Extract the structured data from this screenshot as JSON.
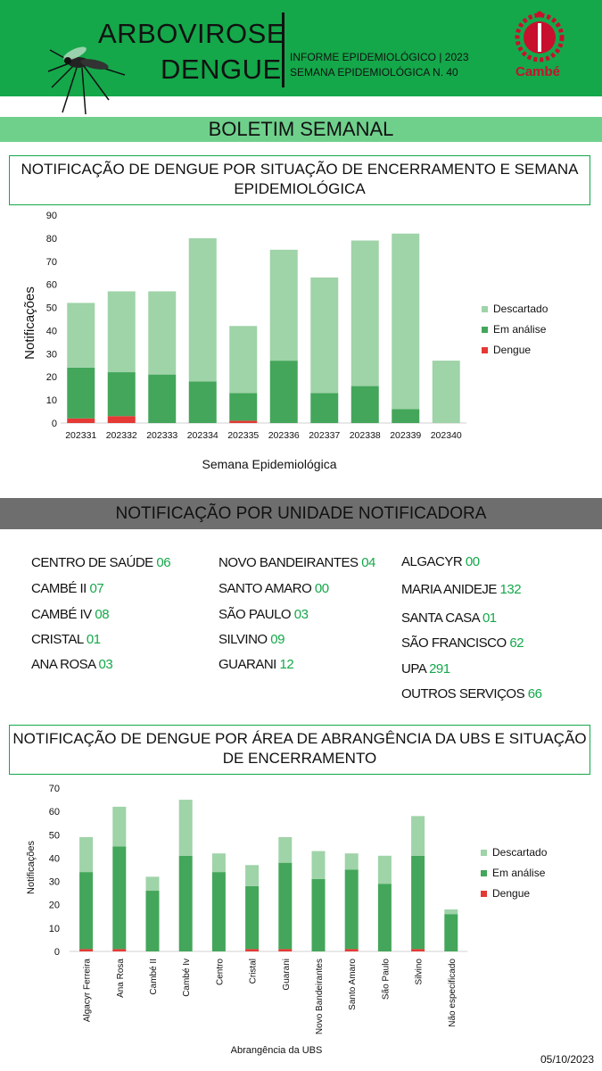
{
  "header": {
    "title_line1": "ARBOVIROSE",
    "title_line2": "DENGUE",
    "informe": "INFORME EPIDEMIOLÓGICO | 2023",
    "semana": "SEMANA EPIDEMIOLÓGICA  N. 40",
    "logo_text": "Cambé"
  },
  "boletim": "BOLETIM SEMANAL",
  "section1_title": "NOTIFICAÇÃO DE DENGUE POR SITUAÇÃO DE ENCERRAMENTO E SEMANA EPIDEMIOLÓGICA",
  "section2_title": "NOTIFICAÇÃO POR UNIDADE NOTIFICADORA",
  "section3_title": "NOTIFICAÇÃO DE DENGUE POR ÁREA DE ABRANGÊNCIA DA UBS E SITUAÇÃO DE ENCERRAMENTO",
  "colors": {
    "descartado": "#9fd3a8",
    "em_analise": "#43a65a",
    "dengue": "#e53935",
    "brand": "#14a84a"
  },
  "units": [
    {
      "name": "CENTRO  DE SAÚDE",
      "value": "06"
    },
    {
      "name": "CAMBÉ II",
      "value": "07"
    },
    {
      "name": "CAMBÉ IV",
      "value": "08"
    },
    {
      "name": "CRISTAL",
      "value": "01"
    },
    {
      "name": "ANA ROSA",
      "value": "03"
    },
    {
      "name": "NOVO BANDEIRANTES",
      "value": "04"
    },
    {
      "name": "SANTO AMARO",
      "value": "00"
    },
    {
      "name": "SÃO PAULO",
      "value": "03"
    },
    {
      "name": "SILVINO",
      "value": "09"
    },
    {
      "name": "GUARANI",
      "value": "12"
    },
    {
      "name": "ALGACYR",
      "value": "00"
    },
    {
      "name": "MARIA ANIDEJE",
      "value": "132"
    },
    {
      "name": "SANTA CASA",
      "value": "01"
    },
    {
      "name": "SÃO FRANCISCO",
      "value": "62"
    },
    {
      "name": "UPA",
      "value": "291"
    },
    {
      "name": "OUTROS SERVIÇOS",
      "value": "66"
    }
  ],
  "date": "05/10/2023",
  "chart_data": [
    {
      "type": "bar",
      "stacked": true,
      "title": "",
      "xlabel": "Semana Epidemiológica",
      "ylabel": "Notificações",
      "ylim": [
        0,
        90
      ],
      "yticks": [
        0,
        10,
        20,
        30,
        40,
        50,
        60,
        70,
        80,
        90
      ],
      "grid": false,
      "legend_position": "right",
      "categories": [
        "202331",
        "202332",
        "202333",
        "202334",
        "202335",
        "202336",
        "202337",
        "202338",
        "202339",
        "202340"
      ],
      "series": [
        {
          "name": "Dengue",
          "values": [
            2,
            3,
            0,
            0,
            1,
            0,
            0,
            0,
            0,
            0
          ]
        },
        {
          "name": "Em análise",
          "values": [
            22,
            19,
            21,
            18,
            12,
            27,
            13,
            16,
            6,
            0
          ]
        },
        {
          "name": "Descartado",
          "values": [
            28,
            35,
            36,
            62,
            29,
            48,
            50,
            63,
            76,
            27
          ]
        }
      ]
    },
    {
      "type": "bar",
      "stacked": true,
      "title": "",
      "xlabel": "Abrangência da UBS",
      "ylabel": "Notificações",
      "ylim": [
        0,
        70
      ],
      "yticks": [
        0,
        10,
        20,
        30,
        40,
        50,
        60,
        70
      ],
      "grid": false,
      "legend_position": "right",
      "categories": [
        "Algacyr Ferreira",
        "Ana Rosa",
        "Cambé II",
        "Cambé Iv",
        "Centro",
        "Cristal",
        "Guarani",
        "Novo Bandeirantes",
        "Santo Amaro",
        "São Paulo",
        "Silvino",
        "Não especificado"
      ],
      "series": [
        {
          "name": "Dengue",
          "values": [
            1,
            1,
            0,
            0,
            0,
            1,
            1,
            0,
            1,
            0,
            1,
            0
          ]
        },
        {
          "name": "Em análise",
          "values": [
            33,
            44,
            26,
            41,
            34,
            27,
            37,
            31,
            34,
            29,
            40,
            16
          ]
        },
        {
          "name": "Descartado",
          "values": [
            15,
            17,
            6,
            24,
            8,
            9,
            11,
            12,
            7,
            12,
            17,
            2
          ]
        }
      ]
    }
  ]
}
